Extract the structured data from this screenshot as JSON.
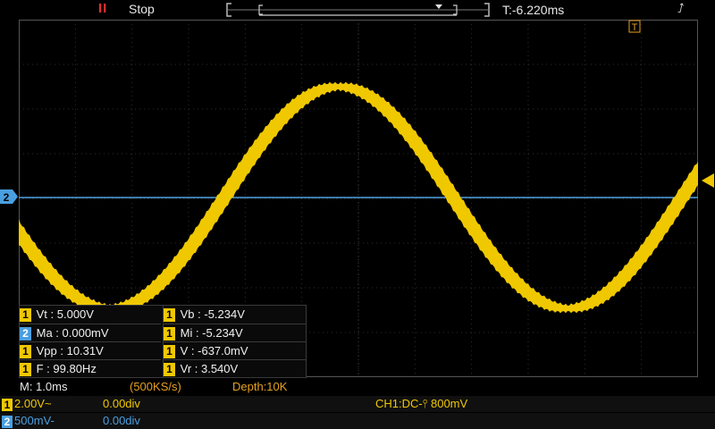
{
  "topbar": {
    "pause_symbol": "II",
    "run_state": "Stop",
    "trigger_time": "T:-6.220ms",
    "trigger_marker": "T",
    "usb_symbol": "⭜"
  },
  "channel_markers": {
    "ch2_left": "2"
  },
  "measurements": [
    {
      "ch": "1",
      "text": "Vt : 5.000V"
    },
    {
      "ch": "1",
      "text": "Vb : -5.234V"
    },
    {
      "ch": "2",
      "text": "Ma : 0.000mV"
    },
    {
      "ch": "1",
      "text": "Mi : -5.234V"
    },
    {
      "ch": "1",
      "text": "Vpp : 10.31V"
    },
    {
      "ch": "1",
      "text": "V : -637.0mV"
    },
    {
      "ch": "1",
      "text": "F : 99.80Hz"
    },
    {
      "ch": "1",
      "text": "Vr : 3.540V"
    }
  ],
  "timebase": {
    "m": "M: 1.0ms",
    "sample_rate": "(500KS/s)",
    "depth": "Depth:10K"
  },
  "ch1": {
    "badge": "1",
    "scale": "2.00V~",
    "offset": "0.00div"
  },
  "ch2": {
    "badge": "2",
    "scale": "500mV-",
    "offset": "0.00div"
  },
  "trigger": {
    "info": "CH1:DC-⫯ 800mV"
  },
  "colors": {
    "ch1": "#f0c800",
    "ch2": "#4a9fe0",
    "grid": "#2e2e2e",
    "trigger": "#e03030"
  }
}
